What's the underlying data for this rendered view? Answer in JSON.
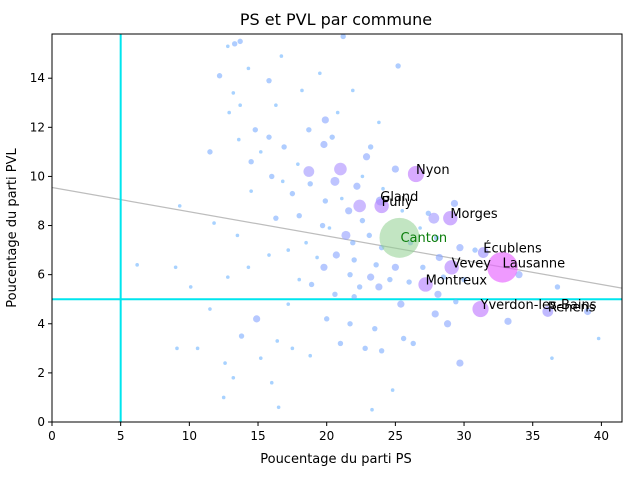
{
  "chart_data": {
    "type": "scatter",
    "title": "PS et PVL par commune",
    "xlabel": "Poucentage du parti PS",
    "ylabel": "Poucentage du parti PVL",
    "xlim": [
      0,
      41.5
    ],
    "ylim": [
      0,
      15.8
    ],
    "xticks": [
      0,
      5,
      10,
      15,
      20,
      25,
      30,
      35,
      40
    ],
    "yticks": [
      0,
      2,
      4,
      6,
      8,
      10,
      12,
      14
    ],
    "grid": false,
    "reference_lines": {
      "x": 5,
      "y": 5,
      "color": "#00e5ee"
    },
    "regression_line": {
      "x": [
        0,
        41.5
      ],
      "y": [
        9.55,
        5.45
      ],
      "color": "#bdbdbd"
    },
    "canton_point": {
      "label": "Canton",
      "x": 25.3,
      "y": 7.5,
      "color": "#8fcf8f"
    },
    "labeled_points": [
      {
        "name": "Nyon",
        "x": 26.5,
        "y": 10.1,
        "size": 9
      },
      {
        "name": "Gland",
        "x": 23.9,
        "y": 9.0,
        "size": 5
      },
      {
        "name": "Pully",
        "x": 24.0,
        "y": 8.8,
        "size": 8
      },
      {
        "name": "Morges",
        "x": 29.0,
        "y": 8.3,
        "size": 8
      },
      {
        "name": "Écublens",
        "x": 31.4,
        "y": 6.9,
        "size": 6
      },
      {
        "name": "Lausanne",
        "x": 32.8,
        "y": 6.3,
        "size": 17
      },
      {
        "name": "Vevey",
        "x": 29.1,
        "y": 6.3,
        "size": 8
      },
      {
        "name": "Montreux",
        "x": 27.2,
        "y": 5.6,
        "size": 8
      },
      {
        "name": "Yverdon-les-Bains",
        "x": 31.2,
        "y": 4.6,
        "size": 9
      },
      {
        "name": "Renens",
        "x": 36.1,
        "y": 4.5,
        "size": 6
      }
    ],
    "points": [
      {
        "x": 13.3,
        "y": 15.4,
        "size": 3
      },
      {
        "x": 13.7,
        "y": 15.5,
        "size": 3
      },
      {
        "x": 21.2,
        "y": 15.7,
        "size": 3
      },
      {
        "x": 12.2,
        "y": 14.1,
        "size": 3
      },
      {
        "x": 15.8,
        "y": 13.9,
        "size": 3
      },
      {
        "x": 25.2,
        "y": 14.5,
        "size": 3
      },
      {
        "x": 16.7,
        "y": 14.9,
        "size": 2
      },
      {
        "x": 13.2,
        "y": 13.4,
        "size": 2
      },
      {
        "x": 13.7,
        "y": 12.9,
        "size": 2
      },
      {
        "x": 19.9,
        "y": 12.3,
        "size": 4
      },
      {
        "x": 20.4,
        "y": 11.6,
        "size": 3
      },
      {
        "x": 18.7,
        "y": 11.9,
        "size": 3
      },
      {
        "x": 14.8,
        "y": 11.9,
        "size": 3
      },
      {
        "x": 15.8,
        "y": 11.6,
        "size": 3
      },
      {
        "x": 16.9,
        "y": 11.2,
        "size": 3
      },
      {
        "x": 19.8,
        "y": 11.3,
        "size": 4
      },
      {
        "x": 11.5,
        "y": 11.0,
        "size": 3
      },
      {
        "x": 23.2,
        "y": 11.2,
        "size": 3
      },
      {
        "x": 22.9,
        "y": 10.8,
        "size": 4
      },
      {
        "x": 21.0,
        "y": 10.3,
        "size": 7
      },
      {
        "x": 18.7,
        "y": 10.2,
        "size": 6
      },
      {
        "x": 20.6,
        "y": 9.8,
        "size": 5
      },
      {
        "x": 14.5,
        "y": 10.6,
        "size": 3
      },
      {
        "x": 16.0,
        "y": 10.0,
        "size": 3
      },
      {
        "x": 22.2,
        "y": 9.6,
        "size": 4
      },
      {
        "x": 18.8,
        "y": 9.7,
        "size": 3
      },
      {
        "x": 22.4,
        "y": 8.8,
        "size": 7
      },
      {
        "x": 25.0,
        "y": 10.3,
        "size": 4
      },
      {
        "x": 17.5,
        "y": 9.3,
        "size": 3
      },
      {
        "x": 19.9,
        "y": 9.0,
        "size": 3
      },
      {
        "x": 21.6,
        "y": 8.6,
        "size": 4
      },
      {
        "x": 22.6,
        "y": 8.2,
        "size": 3
      },
      {
        "x": 27.4,
        "y": 8.5,
        "size": 3
      },
      {
        "x": 27.8,
        "y": 8.3,
        "size": 6
      },
      {
        "x": 29.3,
        "y": 8.9,
        "size": 4
      },
      {
        "x": 16.3,
        "y": 8.3,
        "size": 3
      },
      {
        "x": 18.0,
        "y": 8.4,
        "size": 3
      },
      {
        "x": 19.7,
        "y": 8.0,
        "size": 3
      },
      {
        "x": 21.4,
        "y": 7.6,
        "size": 5
      },
      {
        "x": 23.1,
        "y": 7.6,
        "size": 3
      },
      {
        "x": 21.9,
        "y": 7.3,
        "size": 3
      },
      {
        "x": 24.0,
        "y": 7.1,
        "size": 3
      },
      {
        "x": 26.1,
        "y": 7.3,
        "size": 3
      },
      {
        "x": 28.0,
        "y": 7.5,
        "size": 3
      },
      {
        "x": 29.7,
        "y": 7.1,
        "size": 4
      },
      {
        "x": 30.8,
        "y": 7.0,
        "size": 3
      },
      {
        "x": 20.7,
        "y": 6.8,
        "size": 4
      },
      {
        "x": 22.0,
        "y": 6.6,
        "size": 3
      },
      {
        "x": 23.6,
        "y": 6.4,
        "size": 3
      },
      {
        "x": 25.0,
        "y": 6.3,
        "size": 4
      },
      {
        "x": 27.0,
        "y": 6.3,
        "size": 3
      },
      {
        "x": 28.2,
        "y": 6.7,
        "size": 4
      },
      {
        "x": 19.8,
        "y": 6.3,
        "size": 4
      },
      {
        "x": 21.7,
        "y": 6.0,
        "size": 3
      },
      {
        "x": 23.2,
        "y": 5.9,
        "size": 4
      },
      {
        "x": 24.6,
        "y": 5.8,
        "size": 3
      },
      {
        "x": 26.0,
        "y": 5.7,
        "size": 3
      },
      {
        "x": 28.5,
        "y": 5.9,
        "size": 3
      },
      {
        "x": 30.0,
        "y": 5.8,
        "size": 3
      },
      {
        "x": 34.0,
        "y": 6.0,
        "size": 4
      },
      {
        "x": 18.9,
        "y": 5.6,
        "size": 3
      },
      {
        "x": 22.4,
        "y": 5.5,
        "size": 3
      },
      {
        "x": 23.8,
        "y": 5.5,
        "size": 4
      },
      {
        "x": 20.6,
        "y": 5.2,
        "size": 3
      },
      {
        "x": 22.0,
        "y": 5.1,
        "size": 3
      },
      {
        "x": 25.4,
        "y": 4.8,
        "size": 4
      },
      {
        "x": 28.1,
        "y": 5.2,
        "size": 4
      },
      {
        "x": 27.9,
        "y": 4.4,
        "size": 4
      },
      {
        "x": 29.4,
        "y": 4.9,
        "size": 3
      },
      {
        "x": 33.2,
        "y": 4.1,
        "size": 4
      },
      {
        "x": 36.8,
        "y": 5.5,
        "size": 3
      },
      {
        "x": 39.0,
        "y": 4.5,
        "size": 4
      },
      {
        "x": 28.8,
        "y": 4.0,
        "size": 4
      },
      {
        "x": 20.0,
        "y": 4.2,
        "size": 3
      },
      {
        "x": 21.7,
        "y": 4.0,
        "size": 3
      },
      {
        "x": 23.5,
        "y": 3.8,
        "size": 3
      },
      {
        "x": 25.6,
        "y": 3.4,
        "size": 3
      },
      {
        "x": 26.3,
        "y": 3.2,
        "size": 3
      },
      {
        "x": 21.0,
        "y": 3.2,
        "size": 3
      },
      {
        "x": 22.8,
        "y": 3.0,
        "size": 3
      },
      {
        "x": 24.0,
        "y": 2.9,
        "size": 3
      },
      {
        "x": 29.7,
        "y": 2.4,
        "size": 4
      },
      {
        "x": 14.9,
        "y": 4.2,
        "size": 4
      },
      {
        "x": 13.8,
        "y": 3.5,
        "size": 3
      },
      {
        "x": 16.4,
        "y": 3.3,
        "size": 2
      },
      {
        "x": 15.2,
        "y": 2.6,
        "size": 2
      },
      {
        "x": 12.6,
        "y": 2.4,
        "size": 2
      },
      {
        "x": 11.5,
        "y": 4.6,
        "size": 2
      },
      {
        "x": 10.1,
        "y": 5.5,
        "size": 2
      },
      {
        "x": 12.8,
        "y": 5.9,
        "size": 2
      },
      {
        "x": 14.3,
        "y": 6.3,
        "size": 2
      },
      {
        "x": 15.8,
        "y": 6.8,
        "size": 2
      },
      {
        "x": 17.2,
        "y": 7.0,
        "size": 2
      },
      {
        "x": 18.5,
        "y": 7.3,
        "size": 2
      },
      {
        "x": 13.5,
        "y": 7.6,
        "size": 2
      },
      {
        "x": 11.8,
        "y": 8.1,
        "size": 2
      },
      {
        "x": 9.3,
        "y": 8.8,
        "size": 2
      },
      {
        "x": 14.5,
        "y": 9.4,
        "size": 2
      },
      {
        "x": 16.8,
        "y": 9.8,
        "size": 2
      },
      {
        "x": 17.9,
        "y": 10.5,
        "size": 2
      },
      {
        "x": 15.2,
        "y": 11.0,
        "size": 2
      },
      {
        "x": 13.6,
        "y": 11.5,
        "size": 2
      },
      {
        "x": 12.9,
        "y": 12.6,
        "size": 2
      },
      {
        "x": 16.3,
        "y": 12.9,
        "size": 2
      },
      {
        "x": 18.2,
        "y": 13.5,
        "size": 2
      },
      {
        "x": 14.3,
        "y": 14.4,
        "size": 2
      },
      {
        "x": 12.8,
        "y": 15.3,
        "size": 2
      },
      {
        "x": 17.5,
        "y": 3.0,
        "size": 2
      },
      {
        "x": 18.8,
        "y": 2.7,
        "size": 2
      },
      {
        "x": 16.0,
        "y": 1.6,
        "size": 2
      },
      {
        "x": 12.5,
        "y": 1.0,
        "size": 2
      },
      {
        "x": 13.2,
        "y": 1.8,
        "size": 2
      },
      {
        "x": 16.5,
        "y": 0.6,
        "size": 2
      },
      {
        "x": 23.3,
        "y": 0.5,
        "size": 2
      },
      {
        "x": 24.8,
        "y": 1.3,
        "size": 2
      },
      {
        "x": 9.1,
        "y": 3.0,
        "size": 2
      },
      {
        "x": 10.6,
        "y": 3.0,
        "size": 2
      },
      {
        "x": 6.2,
        "y": 6.4,
        "size": 2
      },
      {
        "x": 9.0,
        "y": 6.3,
        "size": 2
      },
      {
        "x": 36.4,
        "y": 2.6,
        "size": 2
      },
      {
        "x": 39.8,
        "y": 3.4,
        "size": 2
      },
      {
        "x": 17.2,
        "y": 4.8,
        "size": 2
      },
      {
        "x": 18.0,
        "y": 5.8,
        "size": 2
      },
      {
        "x": 19.3,
        "y": 6.7,
        "size": 2
      },
      {
        "x": 20.2,
        "y": 7.9,
        "size": 2
      },
      {
        "x": 21.1,
        "y": 9.1,
        "size": 2
      },
      {
        "x": 22.6,
        "y": 10.0,
        "size": 2
      },
      {
        "x": 24.1,
        "y": 9.5,
        "size": 2
      },
      {
        "x": 25.5,
        "y": 8.6,
        "size": 2
      },
      {
        "x": 26.8,
        "y": 7.9,
        "size": 2
      },
      {
        "x": 23.8,
        "y": 12.2,
        "size": 2
      },
      {
        "x": 20.8,
        "y": 12.6,
        "size": 2
      },
      {
        "x": 19.5,
        "y": 14.2,
        "size": 2
      },
      {
        "x": 21.9,
        "y": 13.5,
        "size": 2
      }
    ]
  }
}
